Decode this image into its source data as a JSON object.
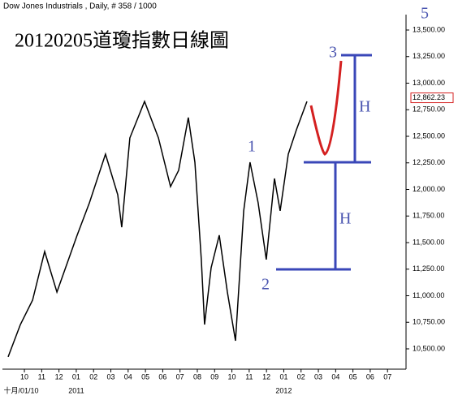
{
  "header": "Dow Jones Industrials , Daily, # 358 / 1000",
  "corner_label": "5",
  "chart_data": {
    "type": "line",
    "title": "20120205道瓊指數日線圖",
    "x": [
      -0.94,
      -0.23,
      0.47,
      1.17,
      1.88,
      3.05,
      3.76,
      4.69,
      5.4,
      5.63,
      6.1,
      6.95,
      7.75,
      8.45,
      8.92,
      9.48,
      9.86,
      10.23,
      10.42,
      10.8,
      11.27,
      11.74,
      12.21,
      12.68,
      13.05,
      13.52,
      13.99,
      14.46,
      14.79,
      15.26,
      15.73,
      16.34
    ],
    "values": [
      10424,
      10729,
      10958,
      11416,
      11034,
      11569,
      11874,
      12332,
      11950,
      11645,
      12485,
      12828,
      12485,
      12027,
      12180,
      12676,
      12256,
      11340,
      10729,
      11263,
      11569,
      11034,
      10576,
      11798,
      12256,
      11874,
      11340,
      12103,
      11798,
      12332,
      12561,
      12828
    ],
    "color": "#000000",
    "xlim": [
      -1.27,
      22.07
    ],
    "ylim": [
      10309,
      13645
    ],
    "xticks": [
      {
        "value": 0,
        "label": "10"
      },
      {
        "value": 1,
        "label": "11"
      },
      {
        "value": 2,
        "label": "12"
      },
      {
        "value": 3,
        "label": "01"
      },
      {
        "value": 4,
        "label": "02"
      },
      {
        "value": 5,
        "label": "03"
      },
      {
        "value": 6,
        "label": "04"
      },
      {
        "value": 7,
        "label": "05"
      },
      {
        "value": 8,
        "label": "06"
      },
      {
        "value": 9,
        "label": "07"
      },
      {
        "value": 10,
        "label": "08"
      },
      {
        "value": 11,
        "label": "09"
      },
      {
        "value": 12,
        "label": "10"
      },
      {
        "value": 13,
        "label": "11"
      },
      {
        "value": 14,
        "label": "12"
      },
      {
        "value": 15,
        "label": "01"
      },
      {
        "value": 16,
        "label": "02"
      },
      {
        "value": 17,
        "label": "03"
      },
      {
        "value": 18,
        "label": "04"
      },
      {
        "value": 19,
        "label": "05"
      },
      {
        "value": 20,
        "label": "06"
      },
      {
        "value": 21,
        "label": "07"
      }
    ],
    "xsubticks": [
      {
        "value": -1.2,
        "label": "十月/01/10"
      },
      {
        "value": 3,
        "label": "2011"
      },
      {
        "value": 15,
        "label": "2012"
      }
    ],
    "yticks": [
      {
        "value": 10500,
        "label": "10,500.00"
      },
      {
        "value": 10750,
        "label": "10,750.00"
      },
      {
        "value": 11000,
        "label": "11,000.00"
      },
      {
        "value": 11250,
        "label": "11,250.00"
      },
      {
        "value": 11500,
        "label": "11,500.00"
      },
      {
        "value": 11750,
        "label": "11,750.00"
      },
      {
        "value": 12000,
        "label": "12,000.00"
      },
      {
        "value": 12250,
        "label": "12,250.00"
      },
      {
        "value": 12500,
        "label": "12,500.00"
      },
      {
        "value": 12750,
        "label": "12,750.00"
      },
      {
        "value": 13000,
        "label": "13,000.00"
      },
      {
        "value": 13250,
        "label": "13,250.00"
      },
      {
        "value": 13500,
        "label": "13,500.00"
      }
    ],
    "last_price": {
      "value": 12862.23,
      "label": "12,862.23"
    },
    "annotations": [
      "1",
      "2",
      "3",
      "H",
      "H"
    ]
  }
}
